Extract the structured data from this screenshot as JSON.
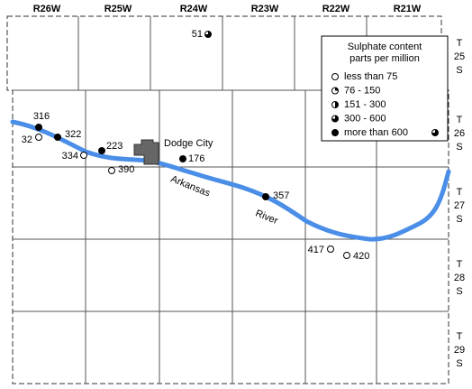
{
  "ranges": [
    "R26W",
    "R25W",
    "R24W",
    "R23W",
    "R22W",
    "R21W"
  ],
  "townships": [
    [
      "T",
      "25",
      "S"
    ],
    [
      "T",
      "26",
      "S"
    ],
    [
      "T",
      "27",
      "S"
    ],
    [
      "T",
      "28",
      "S"
    ],
    [
      "T",
      "29",
      "S"
    ]
  ],
  "legend": {
    "title": [
      "Sulphate content",
      "parts per million"
    ],
    "items": [
      "less than 75",
      "76 - 150",
      "151 - 300",
      "300 - 600",
      "more than 600"
    ]
  },
  "city": "Dodge City",
  "river": [
    "Arkansas",
    "River"
  ],
  "wells": [
    {
      "label": "316",
      "class": 4
    },
    {
      "label": "322",
      "class": 4
    },
    {
      "label": "32",
      "class": 0
    },
    {
      "label": "334",
      "class": 0
    },
    {
      "label": "223",
      "class": 4
    },
    {
      "label": "390",
      "class": 0
    },
    {
      "label": "176",
      "class": 4
    },
    {
      "label": "357",
      "class": 4
    },
    {
      "label": "417",
      "class": 0
    },
    {
      "label": "420",
      "class": 0
    },
    {
      "label": "51",
      "class": 3
    },
    {
      "class": 3
    }
  ]
}
